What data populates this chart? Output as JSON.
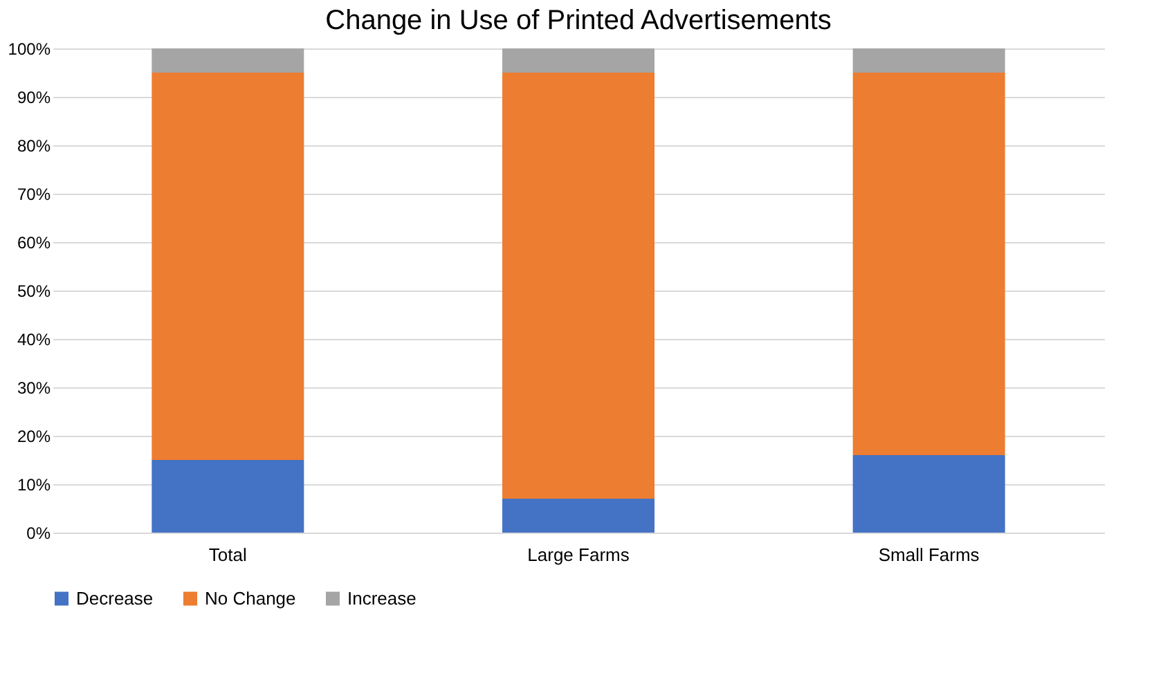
{
  "chart_data": {
    "type": "bar",
    "title": "Change in Use of Printed Advertisements",
    "categories": [
      "Total",
      "Large Farms",
      "Small Farms"
    ],
    "stacked": true,
    "series": [
      {
        "name": "Decrease",
        "color": "#4472c4",
        "values": [
          15,
          7,
          16
        ]
      },
      {
        "name": "No Change",
        "color": "#ed7d31",
        "values": [
          80,
          88,
          79
        ]
      },
      {
        "name": "Increase",
        "color": "#a5a5a5",
        "values": [
          5,
          5,
          5
        ]
      }
    ],
    "ylim": [
      0,
      100
    ],
    "yticks": [
      {
        "value": 0,
        "label": "0%"
      },
      {
        "value": 10,
        "label": "10%"
      },
      {
        "value": 20,
        "label": "20%"
      },
      {
        "value": 30,
        "label": "30%"
      },
      {
        "value": 40,
        "label": "40%"
      },
      {
        "value": 50,
        "label": "50%"
      },
      {
        "value": 60,
        "label": "60%"
      },
      {
        "value": 70,
        "label": "70%"
      },
      {
        "value": 80,
        "label": "80%"
      },
      {
        "value": 90,
        "label": "90%"
      },
      {
        "value": 100,
        "label": "100%"
      }
    ],
    "grid": "y",
    "legend": "bottom"
  }
}
